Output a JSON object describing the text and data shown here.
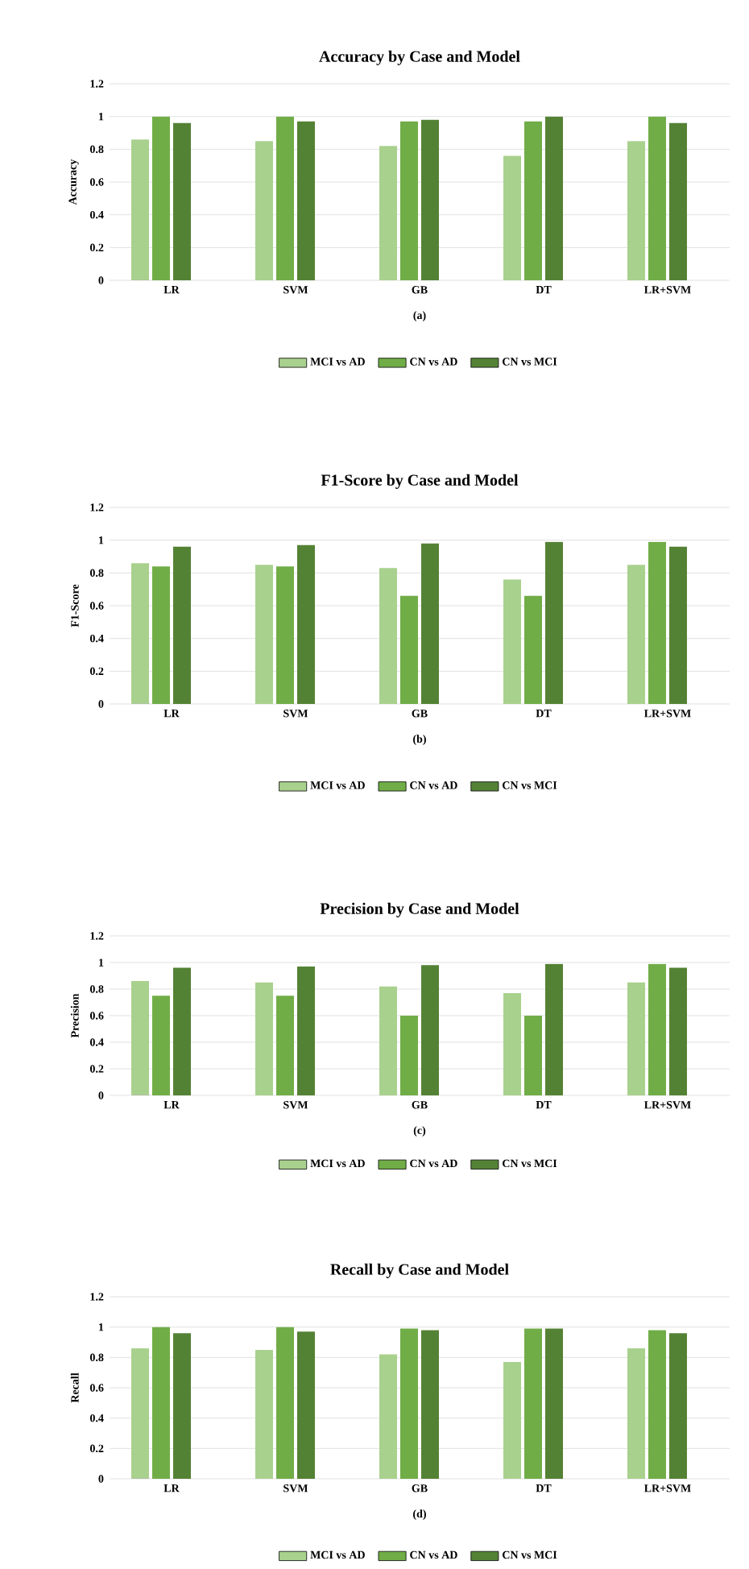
{
  "chart_data": [
    {
      "type": "bar",
      "title": "Accuracy by Case and Model",
      "xlabel": "(a)",
      "ylabel": "Accuracy",
      "categories": [
        "LR",
        "SVM",
        "GB",
        "DT",
        "LR+SVM"
      ],
      "ylim": [
        0,
        1.2
      ],
      "yticks": [
        0,
        0.2,
        0.4,
        0.6,
        0.8,
        1,
        1.2
      ],
      "grid": "y",
      "legend": "bottom",
      "series": [
        {
          "name": "MCI vs AD",
          "color": "#a9d18e",
          "values": [
            0.86,
            0.85,
            0.82,
            0.76,
            0.85
          ]
        },
        {
          "name": "CN vs AD",
          "color": "#70ad47",
          "values": [
            1.0,
            1.0,
            0.97,
            0.97,
            1.0
          ]
        },
        {
          "name": "CN vs MCI",
          "color": "#548235",
          "values": [
            0.96,
            0.97,
            0.98,
            1.0,
            0.96
          ]
        }
      ]
    },
    {
      "type": "bar",
      "title": "F1-Score by Case and Model",
      "xlabel": "(b)",
      "ylabel": "F1-Score",
      "categories": [
        "LR",
        "SVM",
        "GB",
        "DT",
        "LR+SVM"
      ],
      "ylim": [
        0,
        1.2
      ],
      "yticks": [
        0,
        0.2,
        0.4,
        0.6,
        0.8,
        1,
        1.2
      ],
      "grid": "y",
      "legend": "bottom",
      "series": [
        {
          "name": "MCI vs AD",
          "color": "#a9d18e",
          "values": [
            0.86,
            0.85,
            0.83,
            0.76,
            0.85
          ]
        },
        {
          "name": "CN vs AD",
          "color": "#70ad47",
          "values": [
            0.84,
            0.84,
            0.66,
            0.66,
            0.99
          ]
        },
        {
          "name": "CN vs MCI",
          "color": "#548235",
          "values": [
            0.96,
            0.97,
            0.98,
            0.99,
            0.96
          ]
        }
      ]
    },
    {
      "type": "bar",
      "title": "Precision by Case and Model",
      "xlabel": "(c)",
      "ylabel": "Precision",
      "categories": [
        "LR",
        "SVM",
        "GB",
        "DT",
        "LR+SVM"
      ],
      "ylim": [
        0,
        1.2
      ],
      "yticks": [
        0,
        0.2,
        0.4,
        0.6,
        0.8,
        1,
        1.2
      ],
      "grid": "y",
      "legend": "bottom",
      "series": [
        {
          "name": "MCI vs AD",
          "color": "#a9d18e",
          "values": [
            0.86,
            0.85,
            0.82,
            0.77,
            0.85
          ]
        },
        {
          "name": "CN vs AD",
          "color": "#70ad47",
          "values": [
            0.75,
            0.75,
            0.6,
            0.6,
            0.99
          ]
        },
        {
          "name": "CN vs MCI",
          "color": "#548235",
          "values": [
            0.96,
            0.97,
            0.98,
            0.99,
            0.96
          ]
        }
      ]
    },
    {
      "type": "bar",
      "title": "Recall by Case and Model",
      "xlabel": "(d)",
      "ylabel": "Recall",
      "categories": [
        "LR",
        "SVM",
        "GB",
        "DT",
        "LR+SVM"
      ],
      "ylim": [
        0,
        1.2
      ],
      "yticks": [
        0,
        0.2,
        0.4,
        0.6,
        0.8,
        1,
        1.2
      ],
      "grid": "y",
      "legend": "bottom",
      "series": [
        {
          "name": "MCI vs AD",
          "color": "#a9d18e",
          "values": [
            0.86,
            0.85,
            0.82,
            0.77,
            0.86
          ]
        },
        {
          "name": "CN vs AD",
          "color": "#70ad47",
          "values": [
            1.0,
            1.0,
            0.99,
            0.99,
            0.98
          ]
        },
        {
          "name": "CN vs MCI",
          "color": "#548235",
          "values": [
            0.96,
            0.97,
            0.98,
            0.99,
            0.96
          ]
        }
      ]
    }
  ]
}
